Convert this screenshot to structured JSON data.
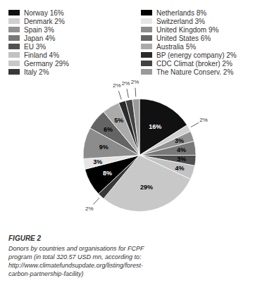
{
  "chart_data": {
    "type": "pie",
    "title": "FIGURE 2",
    "subtitle": "Donors by countries and organisations for FCPF\nprogram (in total 320.57 USD mn, according to:\nhttp://www.climatefundsupdate.org/listing/forest-\ncarbon-partnership-facility)",
    "categories": [
      "Norway 16%",
      "Denmark 2%",
      "Spain 3%",
      "Japan 4%",
      "EU 3%",
      "Finland 4%",
      "Germany 29%",
      "Italy 2%",
      "Netherlands 8%",
      "Switzerland 3%",
      "United Kingdom 9%",
      "United States 6%",
      "Australia 5%",
      "BP (energy company) 2%",
      "CDC Climat (broker) 2%",
      "The Nature Conserv. 2%"
    ],
    "values": [
      16,
      2,
      3,
      4,
      3,
      4,
      29,
      2,
      8,
      3,
      9,
      6,
      5,
      2,
      2,
      2
    ],
    "value_labels": [
      "16%",
      "2%",
      "3%",
      "4%",
      "3%",
      "4%",
      "29%",
      "2%",
      "8%",
      "3%",
      "9%",
      "6%",
      "5%",
      "2%",
      "2%",
      "2%"
    ],
    "colors": [
      "#111111",
      "#d0d0d0",
      "#929292",
      "#787878",
      "#505050",
      "#c2c2c2",
      "#c8c8c8",
      "#383838",
      "#000000",
      "#e5e5e5",
      "#8c8c8c",
      "#646464",
      "#aaaaaa",
      "#2a2a2a",
      "#424242",
      "#9a9a9a"
    ],
    "data_labels": true,
    "legend": "top"
  }
}
